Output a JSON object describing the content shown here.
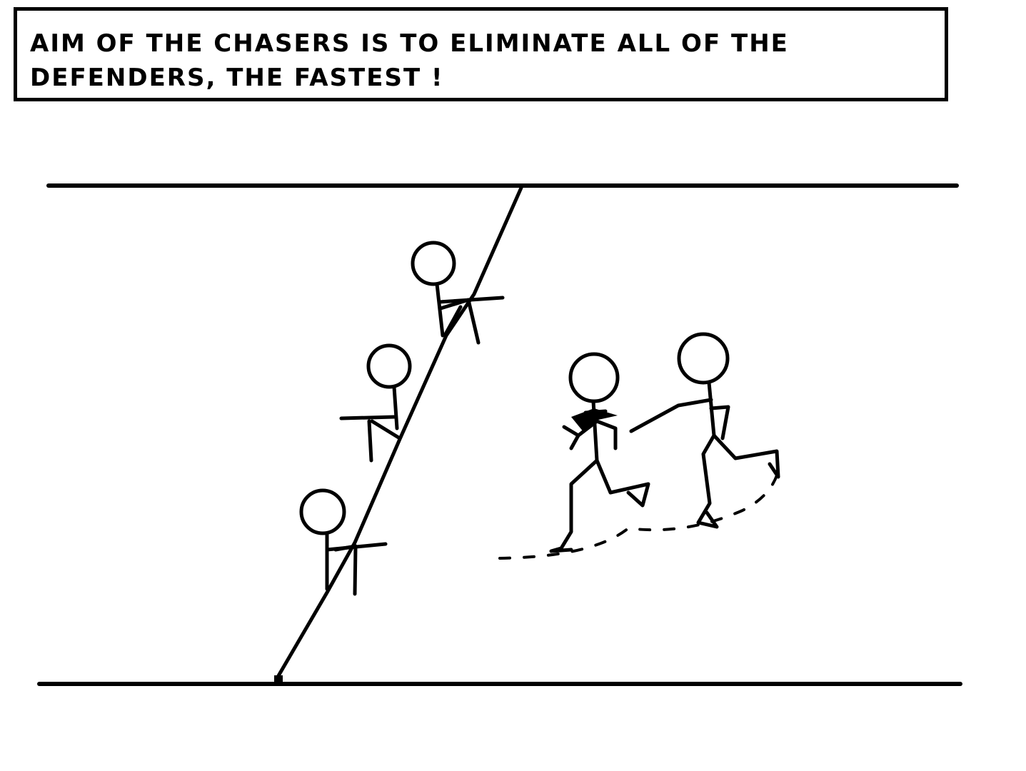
{
  "caption": {
    "text": "AIM OF THE CHASERS IS TO ELIMINATE ALL OF THE DEFENDERS, THE FASTEST !"
  },
  "scene": {
    "field": "field-boundary-lines",
    "chaser_count": 3,
    "defender_count": 2,
    "ink_color": "#000000",
    "background_color": "#ffffff"
  }
}
